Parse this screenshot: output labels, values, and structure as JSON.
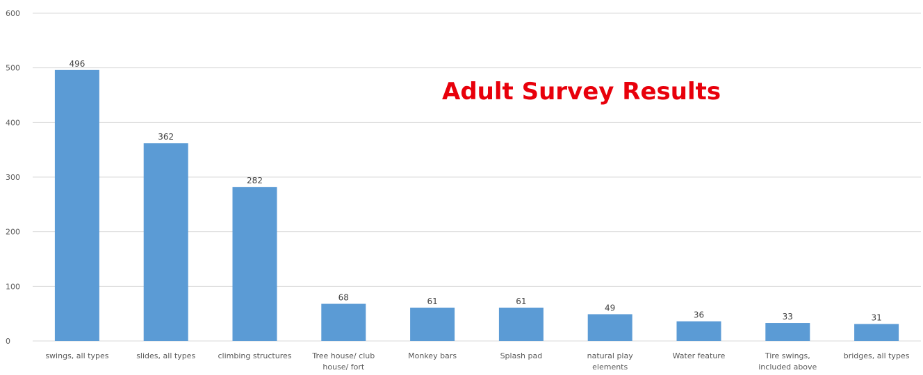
{
  "overlay": {
    "title": "Adult Survey Results"
  },
  "colors": {
    "bar": "#5b9bd5",
    "title": "#e8000b",
    "grid": "#d9d9d9"
  },
  "chart_data": {
    "type": "bar",
    "categories": [
      [
        "swings, all types"
      ],
      [
        "slides, all types"
      ],
      [
        "climbing structures"
      ],
      [
        "Tree house/ club",
        "house/ fort"
      ],
      [
        "Monkey bars"
      ],
      [
        "Splash pad"
      ],
      [
        "natural play",
        "elements"
      ],
      [
        "Water feature"
      ],
      [
        "Tire swings,",
        "included above"
      ],
      [
        "bridges, all types"
      ]
    ],
    "values": [
      496,
      362,
      282,
      68,
      61,
      61,
      49,
      36,
      33,
      31
    ],
    "ylim": [
      0,
      600
    ],
    "yticks": [
      0,
      100,
      200,
      300,
      400,
      500,
      600
    ],
    "grid": true,
    "legend": "none"
  }
}
